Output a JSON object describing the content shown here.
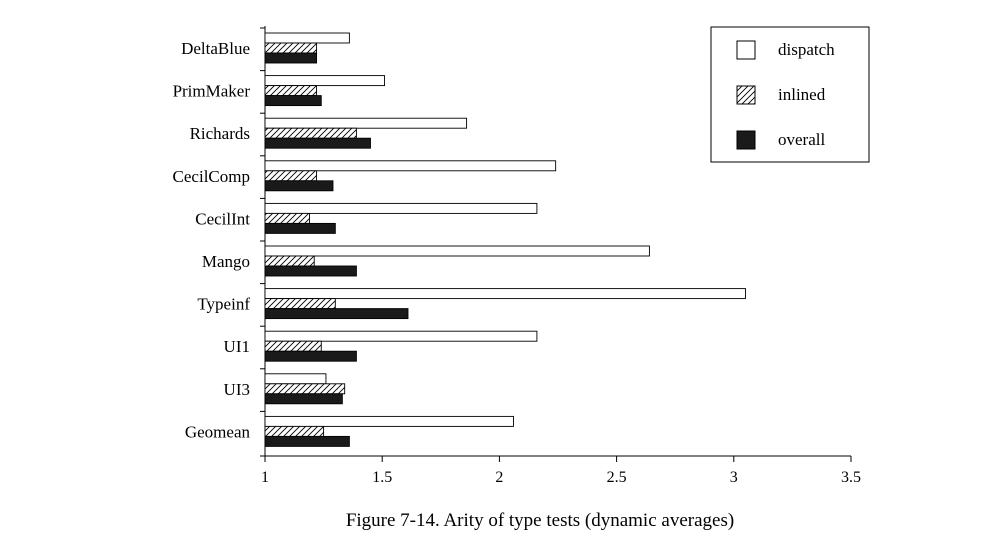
{
  "chart_data": {
    "type": "bar",
    "orientation": "horizontal",
    "categories": [
      "DeltaBlue",
      "PrimMaker",
      "Richards",
      "CecilComp",
      "CecilInt",
      "Mango",
      "Typeinf",
      "UI1",
      "UI3",
      "Geomean"
    ],
    "series": [
      {
        "name": "dispatch",
        "fill": "white",
        "values": [
          1.36,
          1.51,
          1.86,
          2.24,
          2.16,
          2.64,
          3.05,
          2.16,
          1.26,
          2.06
        ]
      },
      {
        "name": "inlined",
        "fill": "hatch",
        "values": [
          1.22,
          1.22,
          1.39,
          1.22,
          1.19,
          1.21,
          1.3,
          1.24,
          1.34,
          1.25
        ]
      },
      {
        "name": "overall",
        "fill": "black",
        "values": [
          1.22,
          1.24,
          1.45,
          1.29,
          1.3,
          1.39,
          1.61,
          1.39,
          1.33,
          1.36
        ]
      }
    ],
    "xlim": [
      1,
      3.5
    ],
    "x_ticks": [
      "1",
      "1.5",
      "2",
      "2.5",
      "3",
      "3.5"
    ],
    "legend_position": "top-right",
    "grid": false,
    "caption": "Figure 7-14.  Arity of type tests (dynamic averages)"
  }
}
